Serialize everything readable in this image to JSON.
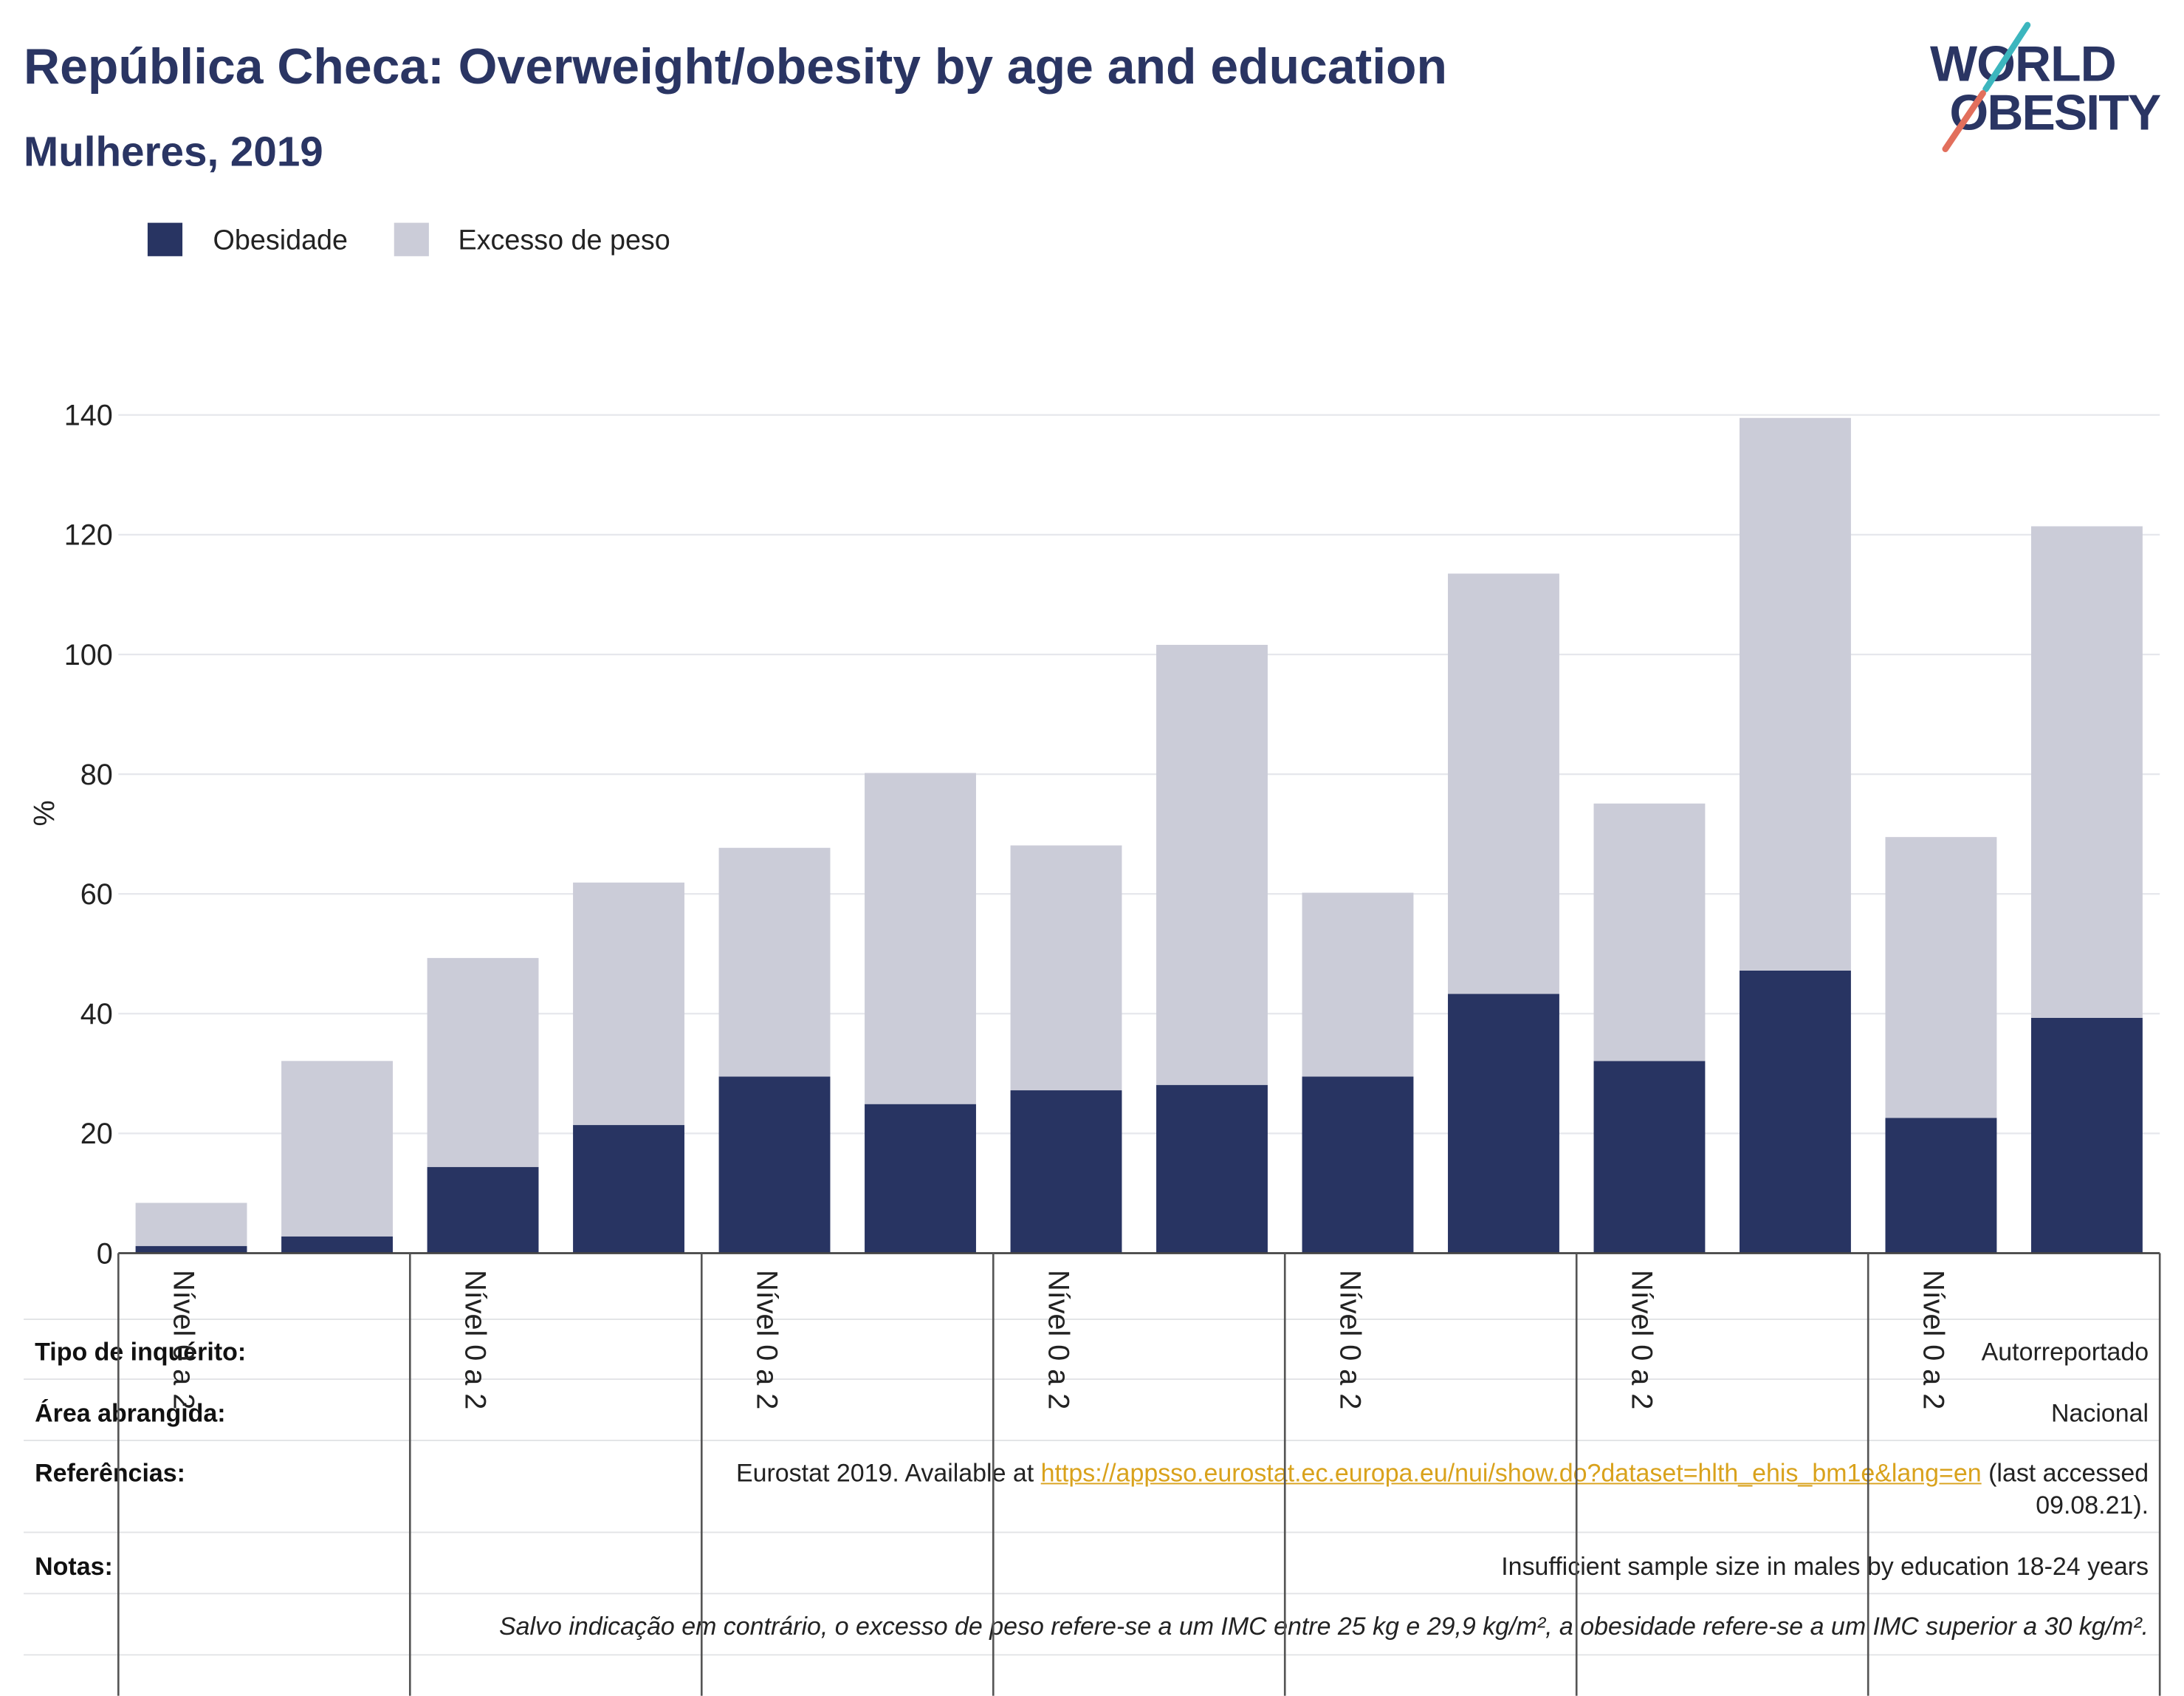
{
  "logo": {
    "line1": "WORLD",
    "line2": "OBESITY"
  },
  "colors": {
    "heading": "#2a3563",
    "logo_slash_top": "#3cb6be",
    "logo_slash_bottom": "#e26f5c",
    "link": "#d9a21c"
  },
  "chart_data": {
    "type": "bar",
    "stacked": true,
    "title": "República Checa: Overweight/obesity by age and education",
    "subtitle": "Mulheres, 2019",
    "ylabel": "%",
    "ylim": [
      0,
      140
    ],
    "y_ticks": [
      0,
      20,
      40,
      60,
      80,
      100,
      120,
      140
    ],
    "grid": true,
    "legend_position": "top-left",
    "categories": [
      "Nível 0 a 2",
      "",
      "Nível 0 a 2",
      "",
      "Nível 0 a 2",
      "",
      "Nível 0 a 2",
      "",
      "Nível 0 a 2",
      "",
      "Nível 0 a 2",
      "",
      "Nível 0 a 2",
      ""
    ],
    "series": [
      {
        "name": "Obesidade",
        "color": "#283462",
        "values": [
          1.2,
          2.8,
          14.4,
          21.4,
          29.5,
          24.9,
          27.2,
          28.1,
          29.5,
          43.3,
          32.1,
          47.2,
          22.6,
          39.3
        ]
      },
      {
        "name": "Excesso de peso",
        "color": "#cbccd8",
        "values": [
          7.2,
          29.3,
          34.9,
          40.5,
          38.2,
          55.3,
          40.9,
          73.5,
          30.7,
          70.2,
          43.0,
          92.3,
          46.9,
          82.1
        ]
      }
    ]
  },
  "info_table": {
    "survey_type": {
      "label": "Tipo de inquérito:",
      "value": "Autorreportado"
    },
    "coverage": {
      "label": "Área abrangida:",
      "value": "Nacional"
    },
    "references": {
      "label": "Referências:",
      "prefix": "Eurostat 2019. Available at ",
      "link": "https://appsso.eurostat.ec.europa.eu/nui/show.do?dataset=hlth_ehis_bm1e&lang=en",
      "suffix": " (last accessed 09.08.21)."
    },
    "notes": {
      "label": "Notas:",
      "value": "Insufficient sample size in males by education 18-24 years"
    },
    "definition_note": "Salvo indicação em contrário, o excesso de peso refere-se a um IMC entre 25 kg e 29,9 kg/m², a obesidade refere-se a um IMC superior a 30 kg/m²."
  }
}
